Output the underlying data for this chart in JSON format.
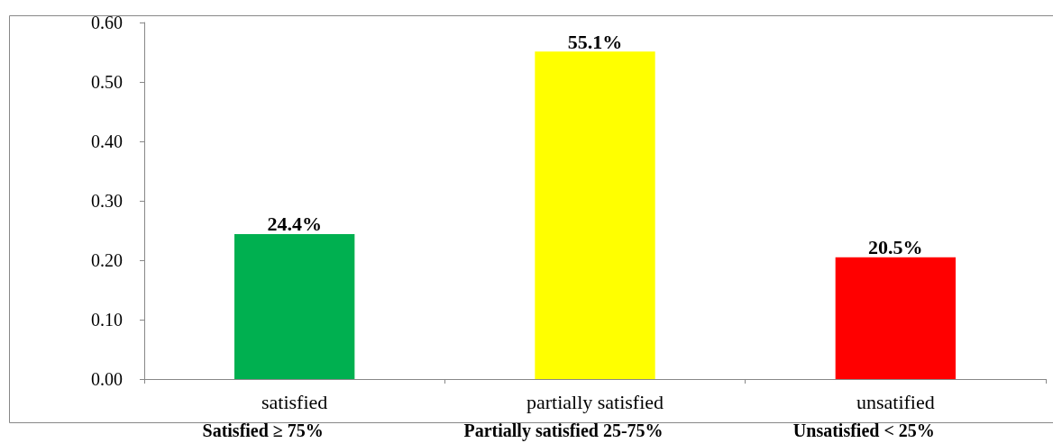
{
  "chart_data": {
    "type": "bar",
    "categories": [
      "satisfied",
      "partially satisfied",
      "unsatified"
    ],
    "values": [
      0.244,
      0.551,
      0.205
    ],
    "colors": [
      "#00b050",
      "#ffff00",
      "#ff0000"
    ],
    "value_labels": [
      "24.4%",
      "55.1%",
      "20.5%"
    ],
    "ylim": [
      0,
      0.6
    ],
    "yticks": [
      {
        "value": 0,
        "label": "0.00"
      },
      {
        "value": 0.1,
        "label": "0.10"
      },
      {
        "value": 0.2,
        "label": "0.20"
      },
      {
        "value": 0.3,
        "label": "0.30"
      },
      {
        "value": 0.4,
        "label": "0.40"
      },
      {
        "value": 0.5,
        "label": "0.50"
      },
      {
        "value": 0.6,
        "label": "0.60"
      }
    ],
    "grid": false,
    "annotations": [
      "Satisfied ≥ 75%",
      "Partially satisfied 25-75%",
      "Unsatisfied < 25%"
    ]
  }
}
